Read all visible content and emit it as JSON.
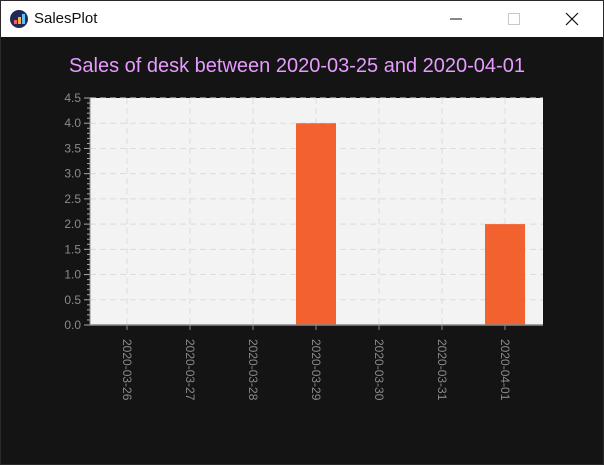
{
  "window": {
    "title": "SalesPlot",
    "icon": "chart-app-icon",
    "controls": {
      "minimize": "minimize-icon",
      "maximize": "maximize-icon",
      "close": "close-icon"
    }
  },
  "colors": {
    "background": "#141414",
    "plot_bg": "#f3f3f3",
    "bar": "#f2622e",
    "title": "#e79bff",
    "tick_text": "#8a8a8a"
  },
  "chart_data": {
    "type": "bar",
    "title": "Sales of desk between 2020-03-25 and 2020-04-01",
    "xlabel": "",
    "ylabel": "",
    "categories": [
      "2020-03-26",
      "2020-03-27",
      "2020-03-28",
      "2020-03-29",
      "2020-03-30",
      "2020-03-31",
      "2020-04-01"
    ],
    "values": [
      0,
      0,
      0,
      4,
      0,
      0,
      2
    ],
    "ylim": [
      0,
      4.5
    ],
    "yticks": [
      "0.0",
      "0.5",
      "1.0",
      "1.5",
      "2.0",
      "2.5",
      "3.0",
      "3.5",
      "4.0",
      "4.5"
    ],
    "grid": true,
    "legend": "none"
  }
}
